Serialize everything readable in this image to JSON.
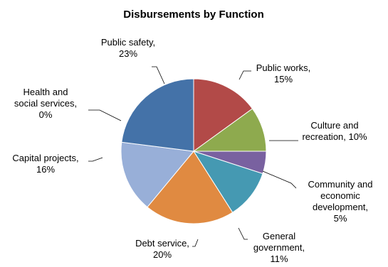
{
  "chart_data": {
    "type": "pie",
    "title": "Disbursements by Function",
    "start_angle_deg": 0,
    "direction": "clockwise",
    "slices": [
      {
        "name": "Public works",
        "value": 15,
        "color": "#B24A48",
        "label_lines": [
          "Public works,",
          "15%"
        ]
      },
      {
        "name": "Culture and recreation",
        "value": 10,
        "color": "#8EAA4E",
        "label_lines": [
          "Culture and",
          "recreation, 10%"
        ]
      },
      {
        "name": "Community and economic development",
        "value": 5,
        "color": "#7961A0",
        "label_lines": [
          "Community and",
          "economic",
          "development,",
          "5%"
        ]
      },
      {
        "name": "General government",
        "value": 11,
        "color": "#4599B2",
        "label_lines": [
          "General",
          "government,",
          "11%"
        ]
      },
      {
        "name": "Debt service",
        "value": 20,
        "color": "#E08A41",
        "label_lines": [
          "Debt service,",
          "20%"
        ]
      },
      {
        "name": "Capital projects",
        "value": 16,
        "color": "#98AFD8",
        "label_lines": [
          "Capital projects,",
          "16%"
        ]
      },
      {
        "name": "Health and social services",
        "value": 0,
        "color": "#4F81BD",
        "label_lines": [
          "Health and",
          "social services,",
          "0%"
        ]
      },
      {
        "name": "Public safety",
        "value": 23,
        "color": "#4472A8",
        "label_lines": [
          "Public safety,",
          "23%"
        ]
      }
    ]
  }
}
